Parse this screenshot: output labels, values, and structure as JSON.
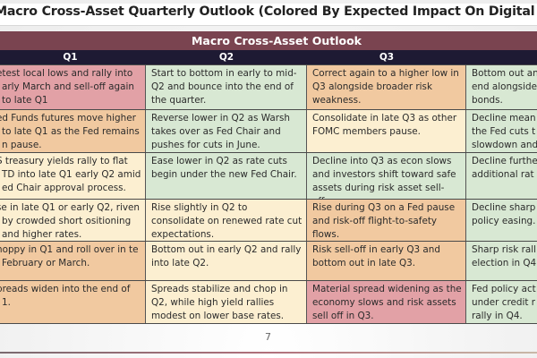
{
  "page": {
    "title": "Macro Cross-Asset Quarterly Outlook (Colored By Expected Impact On Digital Assets)",
    "page_number": "7"
  },
  "table": {
    "banner": "Macro Cross-Asset Outlook",
    "headers": [
      "Q1",
      "Q2",
      "Q3",
      ""
    ],
    "colors": {
      "banner": "#7a4450",
      "header": "#1e1a33",
      "negative": "#e2a1a6",
      "mild_negative": "#f1c9a0",
      "neutral": "#fcefd1",
      "positive": "#d8e8d3"
    },
    "rows": [
      {
        "cells": [
          {
            "text": "etest local lows and rally into arly March and sell-off again to late Q1",
            "tone": "negative"
          },
          {
            "text": "Start to bottom in early to mid-Q2 and bounce into the end of the quarter.",
            "tone": "positive"
          },
          {
            "text": "Correct again to a higher low in Q3 alongside broader risk weakness.",
            "tone": "mild_negative"
          },
          {
            "text": "Bottom out an end alongside bonds.",
            "tone": "positive"
          }
        ]
      },
      {
        "cells": [
          {
            "text": "ed Funds futures move higher to late Q1 as the Fed remains n pause.",
            "tone": "mild_negative"
          },
          {
            "text": "Reverse lower in Q2 as Warsh takes over as Fed Chair and pushes for cuts in June.",
            "tone": "positive"
          },
          {
            "text": "Consolidate in late Q3 as other FOMC members pause.",
            "tone": "neutral"
          },
          {
            "text": "Decline mean the Fed cuts t slowdown and",
            "tone": "positive"
          }
        ]
      },
      {
        "cells": [
          {
            "text": "S treasury yields rally to flat TD into late Q1 early Q2 amid ed Chair approval process.",
            "tone": "neutral"
          },
          {
            "text": "Ease lower in Q2 as rate cuts begin under the new Fed Chair.",
            "tone": "positive"
          },
          {
            "text": "Decline into Q3 as econ slows and investors shift toward safe assets during risk asset sell-offs.",
            "tone": "positive"
          },
          {
            "text": "Decline furthe additional rat",
            "tone": "positive"
          }
        ]
      },
      {
        "cells": [
          {
            "text": "se in late Q1 or early Q2, riven by crowded short ositioning and higher rates.",
            "tone": "neutral"
          },
          {
            "text": "Rise slightly in Q2 to consolidate on renewed rate cut expectations.",
            "tone": "neutral"
          },
          {
            "text": "Rise during Q3 on a Fed pause and risk-off flight-to-safety flows.",
            "tone": "mild_negative"
          },
          {
            "text": "Decline sharp policy easing.",
            "tone": "positive"
          }
        ]
      },
      {
        "cells": [
          {
            "text": "hoppy in Q1 and roll over in te February or March.",
            "tone": "mild_negative"
          },
          {
            "text": "Bottom out in early Q2 and rally into late Q2.",
            "tone": "neutral"
          },
          {
            "text": "Risk sell-off in early Q3 and bottom out in late Q3.",
            "tone": "mild_negative"
          },
          {
            "text": "Sharp risk rall election in Q4",
            "tone": "positive"
          }
        ]
      },
      {
        "cells": [
          {
            "text": "preads widen into the end of 1.",
            "tone": "mild_negative"
          },
          {
            "text": "Spreads stabilize and chop in Q2, while high yield rallies modest on lower base rates.",
            "tone": "neutral"
          },
          {
            "text": "Material spread widening as the economy slows and risk assets sell off in Q3.",
            "tone": "negative"
          },
          {
            "text": "Fed policy act under credit r rally in Q4.",
            "tone": "positive"
          }
        ]
      }
    ]
  }
}
